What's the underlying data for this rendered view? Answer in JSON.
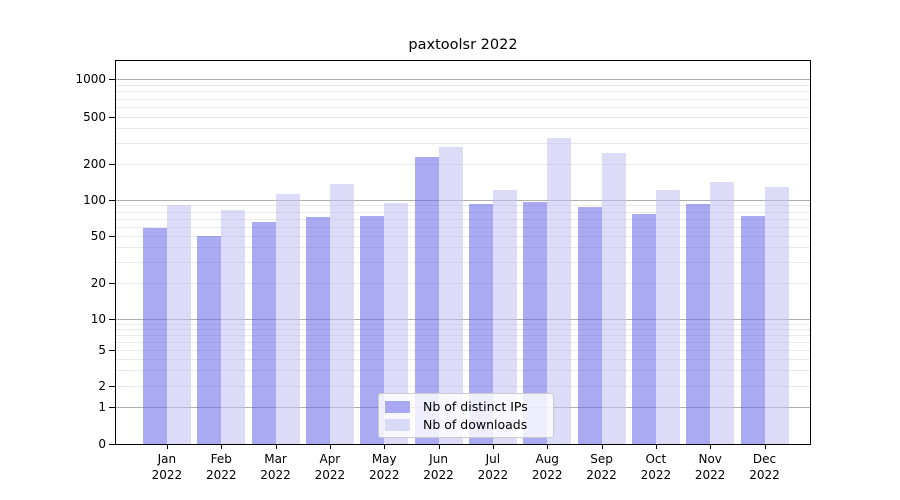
{
  "title": "paxtoolsr 2022",
  "legend": {
    "items": [
      {
        "label": "Nb of distinct IPs",
        "key": "distinct-ips",
        "color": "rgba(100,100,233,0.55)"
      },
      {
        "label": "Nb of downloads",
        "key": "downloads",
        "color": "rgba(191,191,244,0.55)"
      }
    ]
  },
  "chart_data": {
    "type": "bar",
    "title": "paxtoolsr 2022",
    "categories": [
      "Jan",
      "Feb",
      "Mar",
      "Apr",
      "May",
      "Jun",
      "Jul",
      "Aug",
      "Sep",
      "Oct",
      "Nov",
      "Dec"
    ],
    "year": "2022",
    "series": [
      {
        "name": "Nb of distinct IPs",
        "key": "distinct-ips",
        "color": "rgba(100,100,233,0.55)",
        "values": [
          58,
          50,
          66,
          72,
          73,
          230,
          92,
          97,
          88,
          77,
          92,
          73
        ]
      },
      {
        "name": "Nb of downloads",
        "key": "downloads",
        "color": "rgba(191,191,244,0.55)",
        "values": [
          91,
          82,
          113,
          135,
          95,
          280,
          122,
          333,
          250,
          121,
          141,
          129
        ]
      }
    ],
    "yscale": "symlog",
    "yticks": [
      0,
      1,
      2,
      5,
      10,
      20,
      50,
      100,
      200,
      500,
      1000
    ],
    "ylim": [
      0,
      1400
    ],
    "grid": true,
    "xlabel": "",
    "ylabel": "",
    "legend_position": "bottom-center"
  }
}
